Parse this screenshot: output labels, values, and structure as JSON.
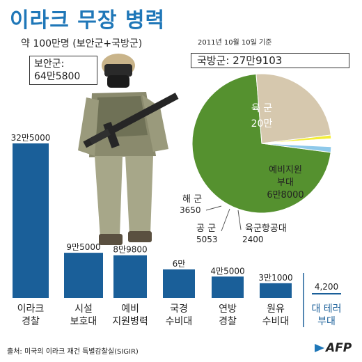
{
  "header": {
    "title": "이라크 무장 병력",
    "subtitle": "약 100만명 (보안군+국방군)",
    "date": "2011년 10월 10일 기준"
  },
  "security_forces_label": [
    "보안군:",
    "64만5800"
  ],
  "defense_forces_label": "국방군: 27만9103",
  "colors": {
    "bar": "#1a5f99",
    "title": "#1f77b8",
    "army": "#55912f",
    "reserve": "#d6c8ae",
    "navy": "#8ec9ea",
    "airforce": "#f4ee3a"
  },
  "chart_data": [
    {
      "type": "bar",
      "categories": [
        [
          "이라크",
          "경찰"
        ],
        [
          "시설",
          "보호대"
        ],
        [
          "예비",
          "지원병력"
        ],
        [
          "국경",
          "수비대"
        ],
        [
          "연방",
          "경찰"
        ],
        [
          "원유",
          "수비대"
        ],
        [
          "대 테러",
          "부대"
        ]
      ],
      "values": [
        325000,
        95000,
        89800,
        60000,
        45000,
        31000,
        4200
      ],
      "value_labels": [
        "32만5000",
        "9만5000",
        "8만9800",
        "6만",
        "4만5000",
        "3만1000",
        "4,200"
      ]
    },
    {
      "type": "pie",
      "slices": [
        {
          "label": "육 군",
          "value_label": "20만",
          "value": 200000
        },
        {
          "label": "예비지원 부대",
          "value_label": "6만8000",
          "value": 68000
        },
        {
          "label": "육군항공대",
          "value_label": "2400",
          "value": 2400
        },
        {
          "label": "공 군",
          "value_label": "5053",
          "value": 5053
        },
        {
          "label": "해 군",
          "value_label": "3650",
          "value": 3650
        }
      ]
    }
  ],
  "footer": {
    "source": "출처: 미국의 이라크 재건 특별감찰실(SIGIR)",
    "logo": "AFP"
  }
}
